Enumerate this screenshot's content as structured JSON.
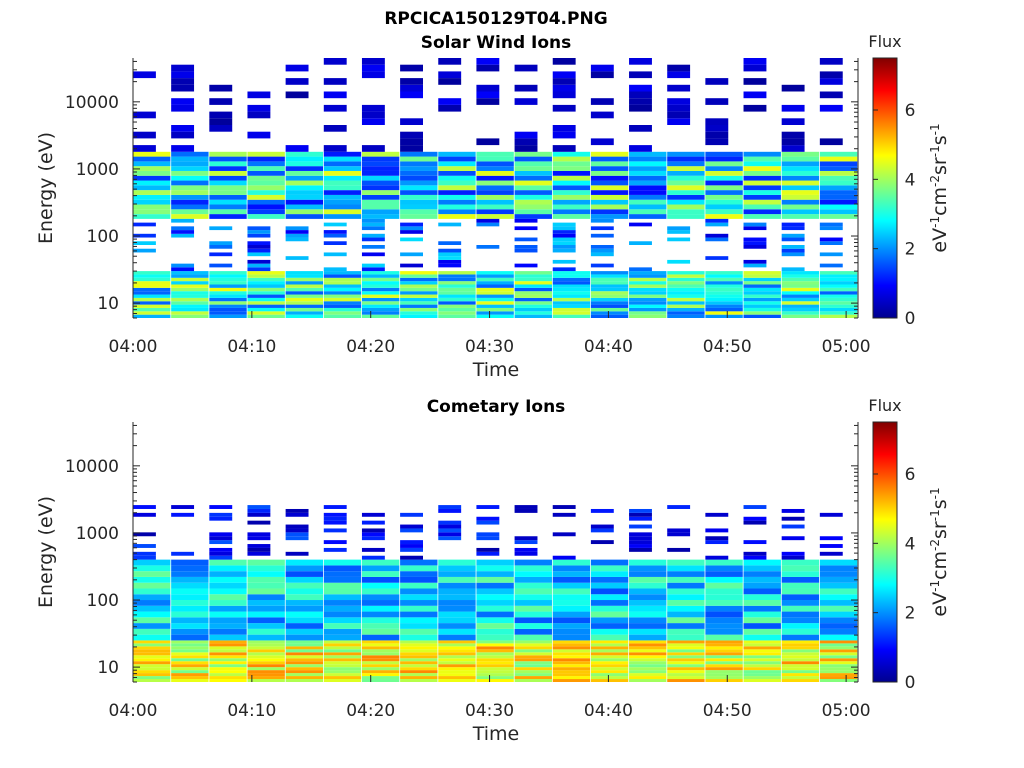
{
  "figure": {
    "title": "RPCICA150129T04.PNG"
  },
  "chart_data": [
    {
      "type": "heatmap",
      "title": "Solar Wind Ions",
      "xlabel": "Time",
      "ylabel": "Energy (eV)",
      "x_ticks": [
        "04:00",
        "04:10",
        "04:20",
        "04:30",
        "04:40",
        "04:50",
        "05:00"
      ],
      "x_range": [
        "04:00",
        "05:01"
      ],
      "y_scale": "log",
      "y_ticks": [
        10,
        100,
        1000,
        10000
      ],
      "y_tick_labels": [
        "10",
        "100",
        "1000",
        "10000"
      ],
      "ylim": [
        6,
        45000
      ],
      "colorbar": {
        "title": "Flux",
        "label": "eV-1cm-2sr-1s-1",
        "ticks": [
          0,
          2,
          4,
          6
        ],
        "range": [
          0,
          7.5
        ],
        "colormap": "jet"
      },
      "bands": [
        {
          "e_low": 6,
          "e_high": 30,
          "level_range": [
            1.5,
            4.6
          ],
          "summary": "dense low-energy band"
        },
        {
          "e_low": 180,
          "e_high": 1800,
          "level_range": [
            1.0,
            4.6
          ],
          "summary": "solar wind core, peak ~300-700 eV"
        },
        {
          "e_low": 30,
          "e_high": 180,
          "level_range": [
            0.6,
            2.6
          ],
          "summary": "sparse intermediate counts"
        },
        {
          "e_low": 1800,
          "e_high": 45000,
          "level_range": [
            0.2,
            0.9
          ],
          "summary": "sparse high-energy noise"
        }
      ]
    },
    {
      "type": "heatmap",
      "title": "Cometary Ions",
      "xlabel": "Time",
      "ylabel": "Energy (eV)",
      "x_ticks": [
        "04:00",
        "04:10",
        "04:20",
        "04:30",
        "04:40",
        "04:50",
        "05:00"
      ],
      "x_range": [
        "04:00",
        "05:01"
      ],
      "y_scale": "log",
      "y_ticks": [
        10,
        100,
        1000,
        10000
      ],
      "y_tick_labels": [
        "10",
        "100",
        "1000",
        "10000"
      ],
      "ylim": [
        6,
        45000
      ],
      "colorbar": {
        "title": "Flux",
        "label": "eV-1cm-2sr-1s-1",
        "ticks": [
          0,
          2,
          4,
          6
        ],
        "range": [
          0,
          7.5
        ],
        "colormap": "jet"
      },
      "bands": [
        {
          "e_low": 6,
          "e_high": 25,
          "level_range": [
            3.6,
            5.6
          ],
          "summary": "intense cometary band"
        },
        {
          "e_low": 25,
          "e_high": 400,
          "level_range": [
            1.5,
            3.6
          ],
          "summary": "moderate broad counts"
        },
        {
          "e_low": 400,
          "e_high": 2600,
          "level_range": [
            0.3,
            1.6
          ],
          "summary": "sparse high-energy counts"
        }
      ]
    }
  ]
}
